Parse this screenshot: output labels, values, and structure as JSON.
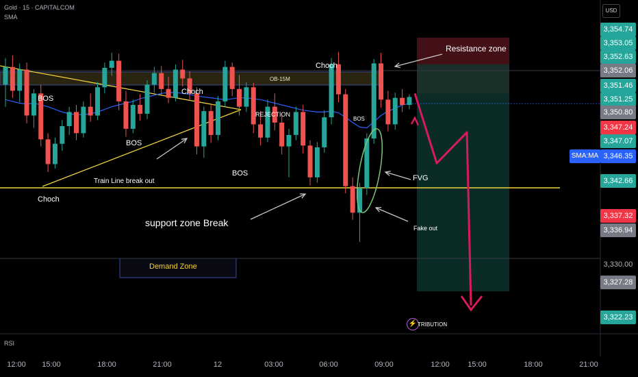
{
  "header": {
    "symbol": "Gold · 15 · CAPITALCOM",
    "indicator": "SMA"
  },
  "currency_button": "USD",
  "price_axis": {
    "tags": [
      {
        "value": "3,354.74",
        "color": "#26a69a"
      },
      {
        "value": "3,353.05",
        "color": "#26a69a"
      },
      {
        "value": "3,352.63",
        "color": "#26a69a"
      },
      {
        "value": "3,352.06",
        "color": "#787b86"
      },
      {
        "value": "3,351.46",
        "color": "#26a69a"
      },
      {
        "value": "3,351.25",
        "color": "#26a69a"
      },
      {
        "value": "3,350.80",
        "color": "#787b86"
      },
      {
        "value": "3,347.24",
        "color": "#f23645"
      },
      {
        "value": "3,347.07",
        "color": "#26a69a"
      },
      {
        "value": "3,342.66",
        "color": "#26a69a"
      },
      {
        "value": "3,337.32",
        "color": "#f23645"
      },
      {
        "value": "3,336.94",
        "color": "#787b86"
      },
      {
        "value": "3,327.28",
        "color": "#787b86"
      },
      {
        "value": "3,322.23",
        "color": "#26a69a"
      }
    ],
    "plain_labels": [
      "3,330.00"
    ],
    "sma_label": "SMA:MA",
    "sma_value": "3,346.35"
  },
  "time_axis": [
    "12:00",
    "15:00",
    "18:00",
    "21:00",
    "12",
    "03:00",
    "06:00",
    "09:00",
    "12:00",
    "15:00",
    "18:00",
    "21:00"
  ],
  "annotations": {
    "resistance": "Resistance zone",
    "choch_top": "Choch",
    "ob": "OB-15M",
    "bos_left": "BOS",
    "choch_mid": "Choch",
    "rejection": "REJECTION",
    "bos_mid": "BOS",
    "bos_right": "BOS",
    "bos_low": "BOS",
    "trend_break": "Train Line break out",
    "choch_low": "Choch",
    "fvg": "FVG",
    "support_break": "support zone Break",
    "fake_out": "Fake out",
    "demand": "Demand Zone",
    "distribution": "TRIBUTION"
  },
  "pane_label": "RSI",
  "colors": {
    "bull": "#26a69a",
    "bear": "#ef5350",
    "sma": "#2962ff",
    "trendline": "#f0d33a",
    "projection": "#d81b60",
    "ellipse": "#7cc576"
  },
  "chart_data": {
    "type": "candlestick",
    "symbol": "Gold",
    "interval": "15",
    "ylim": [
      3322.23,
      3354.74
    ],
    "candles": [
      [
        3348.5,
        3351.5,
        3346.0,
        3350.5
      ],
      [
        3350.5,
        3351.8,
        3347.0,
        3347.8
      ],
      [
        3347.8,
        3350.9,
        3346.5,
        3350.2
      ],
      [
        3350.2,
        3351.0,
        3344.1,
        3345.0
      ],
      [
        3345.0,
        3348.0,
        3343.6,
        3347.5
      ],
      [
        3347.5,
        3348.5,
        3341.5,
        3342.3
      ],
      [
        3342.3,
        3343.0,
        3338.6,
        3339.5
      ],
      [
        3339.5,
        3342.5,
        3339.0,
        3341.8
      ],
      [
        3341.8,
        3344.5,
        3341.0,
        3343.8
      ],
      [
        3343.8,
        3346.0,
        3342.8,
        3345.4
      ],
      [
        3345.4,
        3346.2,
        3342.2,
        3343.0
      ],
      [
        3343.0,
        3346.6,
        3342.5,
        3346.0
      ],
      [
        3346.0,
        3347.5,
        3344.3,
        3345.0
      ],
      [
        3345.0,
        3348.8,
        3344.5,
        3348.2
      ],
      [
        3348.2,
        3351.0,
        3347.5,
        3350.4
      ],
      [
        3350.4,
        3352.1,
        3349.5,
        3351.2
      ],
      [
        3351.2,
        3352.0,
        3345.6,
        3346.6
      ],
      [
        3346.6,
        3347.8,
        3342.6,
        3343.5
      ],
      [
        3343.5,
        3346.8,
        3343.0,
        3346.2
      ],
      [
        3346.2,
        3347.4,
        3344.4,
        3345.2
      ],
      [
        3345.2,
        3349.0,
        3344.6,
        3348.5
      ],
      [
        3348.5,
        3350.5,
        3347.6,
        3349.8
      ],
      [
        3349.8,
        3350.6,
        3347.2,
        3348.0
      ],
      [
        3348.0,
        3349.4,
        3346.4,
        3347.0
      ],
      [
        3347.0,
        3350.8,
        3346.6,
        3350.2
      ],
      [
        3350.2,
        3351.3,
        3348.3,
        3349.2
      ],
      [
        3349.2,
        3350.0,
        3346.8,
        3347.5
      ],
      [
        3347.5,
        3348.2,
        3340.6,
        3341.5
      ],
      [
        3341.5,
        3346.0,
        3340.2,
        3345.5
      ],
      [
        3345.5,
        3346.2,
        3341.9,
        3342.8
      ],
      [
        3342.8,
        3347.2,
        3342.2,
        3346.6
      ],
      [
        3346.6,
        3351.2,
        3346.0,
        3350.5
      ],
      [
        3350.5,
        3351.0,
        3347.2,
        3348.0
      ],
      [
        3348.0,
        3349.6,
        3345.0,
        3346.0
      ],
      [
        3346.0,
        3348.8,
        3345.4,
        3348.2
      ],
      [
        3348.2,
        3348.7,
        3343.0,
        3344.0
      ],
      [
        3344.0,
        3345.5,
        3341.6,
        3342.5
      ],
      [
        3342.5,
        3346.8,
        3342.0,
        3346.0
      ],
      [
        3346.0,
        3347.5,
        3343.3,
        3344.2
      ],
      [
        3344.2,
        3345.0,
        3340.6,
        3341.5
      ],
      [
        3341.5,
        3343.5,
        3338.0,
        3342.8
      ],
      [
        3342.8,
        3346.0,
        3342.2,
        3345.4
      ],
      [
        3345.4,
        3346.2,
        3340.7,
        3341.6
      ],
      [
        3341.6,
        3342.2,
        3337.1,
        3338.0
      ],
      [
        3338.0,
        3342.0,
        3337.4,
        3341.4
      ],
      [
        3341.4,
        3345.6,
        3340.8,
        3344.8
      ],
      [
        3344.8,
        3351.5,
        3344.0,
        3350.8
      ],
      [
        3350.8,
        3352.2,
        3346.5,
        3347.4
      ],
      [
        3347.4,
        3348.0,
        3336.2,
        3337.0
      ],
      [
        3337.0,
        3338.0,
        3333.2,
        3334.0
      ],
      [
        3334.0,
        3337.4,
        3330.7,
        3336.8
      ],
      [
        3336.8,
        3343.0,
        3336.0,
        3342.4
      ],
      [
        3342.4,
        3351.4,
        3341.8,
        3350.9
      ],
      [
        3350.9,
        3352.1,
        3345.9,
        3346.8
      ],
      [
        3346.8,
        3347.8,
        3343.2,
        3344.0
      ],
      [
        3344.0,
        3347.6,
        3343.4,
        3347.0
      ],
      [
        3347.0,
        3348.0,
        3345.4,
        3346.2
      ],
      [
        3346.2,
        3347.4,
        3345.7,
        3347.1
      ]
    ],
    "sma": [
      3346.8,
      3346.6,
      3346.4,
      3346.3,
      3346.4,
      3346.2,
      3346.0,
      3345.7,
      3345.4,
      3345.2,
      3345.1,
      3345.1,
      3345.2,
      3345.4,
      3345.7,
      3346.0,
      3346.2,
      3346.4,
      3346.6,
      3346.9,
      3347.1,
      3347.3,
      3347.5,
      3347.6,
      3347.6,
      3347.5,
      3347.4,
      3347.2,
      3347.1,
      3347.0,
      3346.9,
      3346.8,
      3346.9,
      3347.0,
      3347.0,
      3346.9,
      3346.8,
      3346.6,
      3346.4,
      3346.2,
      3346.0,
      3345.8,
      3345.6,
      3345.5,
      3345.4,
      3345.4,
      3345.5,
      3345.3,
      3344.8,
      3344.2,
      3343.7,
      3343.6,
      3344.3,
      3345.0,
      3345.5,
      3345.8,
      3346.2,
      3346.35
    ],
    "zones": {
      "resistance": [
        3347.5,
        3354.74
      ],
      "target_zone": [
        3325.1,
        3350.8
      ],
      "order_block": [
        3351.2,
        3352.8
      ],
      "demand": [
        3328.7,
        3331.6
      ]
    },
    "levels": [
      3342.66,
      3352.06,
      3330.0
    ],
    "projection_path": [
      [
        3347.5
      ],
      [
        3339.6
      ],
      [
        3343.1
      ],
      [
        3323.5
      ]
    ],
    "ticks_x": [
      "12:00",
      "15:00",
      "18:00",
      "21:00",
      "12",
      "03:00",
      "06:00",
      "09:00",
      "12:00",
      "15:00",
      "18:00",
      "21:00"
    ]
  }
}
